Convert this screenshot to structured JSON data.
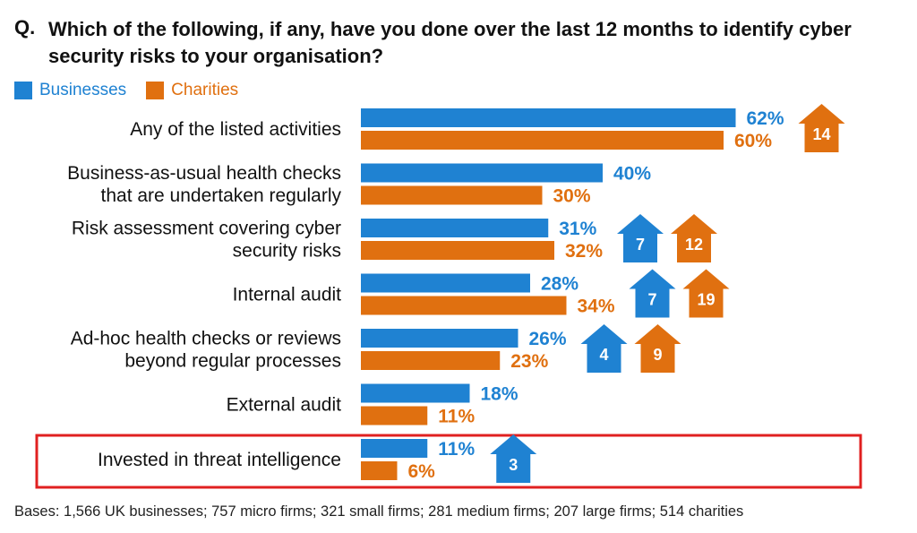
{
  "question_prefix": "Q.",
  "question": "Which of the following, if any, have you done over the last 12 months to identify cyber security risks to your organisation?",
  "colors": {
    "businesses": "#1f82d2",
    "charities": "#e07010",
    "highlight": "#e02020"
  },
  "legend": {
    "businesses": "Businesses",
    "charities": "Charities"
  },
  "footnote": "Bases: 1,566 UK businesses; 757 micro firms; 321 small firms; 281 medium firms; 207 large firms; 514 charities",
  "chart_data": {
    "type": "bar",
    "orientation": "horizontal",
    "categories": [
      [
        "Any of the listed activities"
      ],
      [
        "Business-as-usual health checks",
        "that are undertaken regularly"
      ],
      [
        "Risk assessment covering cyber",
        "security risks"
      ],
      [
        "Internal audit"
      ],
      [
        "Ad-hoc health checks or reviews",
        "beyond regular processes"
      ],
      [
        "External audit"
      ],
      [
        "Invested in threat intelligence"
      ]
    ],
    "series": [
      {
        "name": "Businesses",
        "values": [
          62,
          40,
          31,
          28,
          26,
          18,
          11
        ],
        "labels": [
          "62%",
          "40%",
          "31%",
          "28%",
          "26%",
          "18%",
          "11%"
        ]
      },
      {
        "name": "Charities",
        "values": [
          60,
          30,
          32,
          34,
          23,
          11,
          6
        ],
        "labels": [
          "60%",
          "30%",
          "32%",
          "34%",
          "23%",
          "11%",
          "6%"
        ]
      }
    ],
    "change_arrows": [
      {
        "category_index": 0,
        "series": "Charities",
        "value": "14"
      },
      {
        "category_index": 2,
        "series": "Businesses",
        "value": "7"
      },
      {
        "category_index": 2,
        "series": "Charities",
        "value": "12"
      },
      {
        "category_index": 3,
        "series": "Businesses",
        "value": "7"
      },
      {
        "category_index": 3,
        "series": "Charities",
        "value": "19"
      },
      {
        "category_index": 4,
        "series": "Businesses",
        "value": "4"
      },
      {
        "category_index": 4,
        "series": "Charities",
        "value": "9"
      },
      {
        "category_index": 6,
        "series": "Businesses",
        "value": "3"
      }
    ],
    "highlighted_category_index": 6,
    "xlim": [
      0,
      100
    ]
  }
}
